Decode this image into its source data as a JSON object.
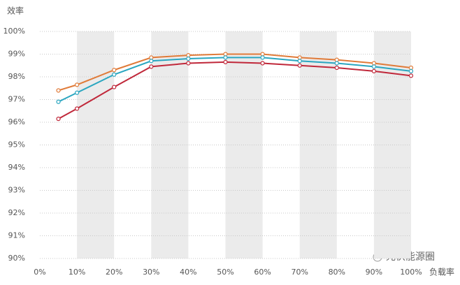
{
  "chart_data": {
    "type": "line",
    "y_label": "效率",
    "x_label": "负载率",
    "watermark": "光伏能源圈",
    "x": [
      5,
      10,
      20,
      30,
      40,
      50,
      60,
      70,
      80,
      90,
      100
    ],
    "series": [
      {
        "color": "#e07b39",
        "values": [
          97.4,
          97.65,
          98.3,
          98.85,
          98.95,
          99.0,
          99.0,
          98.85,
          98.75,
          98.6,
          98.4
        ]
      },
      {
        "color": "#2aa6c0",
        "values": [
          96.9,
          97.3,
          98.1,
          98.7,
          98.8,
          98.85,
          98.85,
          98.7,
          98.6,
          98.45,
          98.25
        ]
      },
      {
        "color": "#c0283a",
        "values": [
          96.15,
          96.6,
          97.55,
          98.45,
          98.6,
          98.65,
          98.6,
          98.5,
          98.4,
          98.25,
          98.05
        ]
      }
    ],
    "xlim": [
      0,
      100
    ],
    "xticks": [
      {
        "value": 0,
        "label": "0%"
      },
      {
        "value": 10,
        "label": "10%"
      },
      {
        "value": 20,
        "label": "20%"
      },
      {
        "value": 30,
        "label": "30%"
      },
      {
        "value": 40,
        "label": "40%"
      },
      {
        "value": 50,
        "label": "50%"
      },
      {
        "value": 60,
        "label": "60%"
      },
      {
        "value": 70,
        "label": "70%"
      },
      {
        "value": 80,
        "label": "80%"
      },
      {
        "value": 90,
        "label": "90%"
      },
      {
        "value": 100,
        "label": "100%"
      }
    ],
    "ylim": [
      90,
      100
    ],
    "yticks": [
      {
        "value": 90,
        "label": "90%"
      },
      {
        "value": 91,
        "label": "91%"
      },
      {
        "value": 92,
        "label": "92%"
      },
      {
        "value": 93,
        "label": "93%"
      },
      {
        "value": 94,
        "label": "94%"
      },
      {
        "value": 95,
        "label": "95%"
      },
      {
        "value": 96,
        "label": "96%"
      },
      {
        "value": 97,
        "label": "97%"
      },
      {
        "value": 98,
        "label": "98%"
      },
      {
        "value": 99,
        "label": "99%"
      },
      {
        "value": 100,
        "label": "100%"
      }
    ],
    "grid": true,
    "shaded_bands": true
  }
}
